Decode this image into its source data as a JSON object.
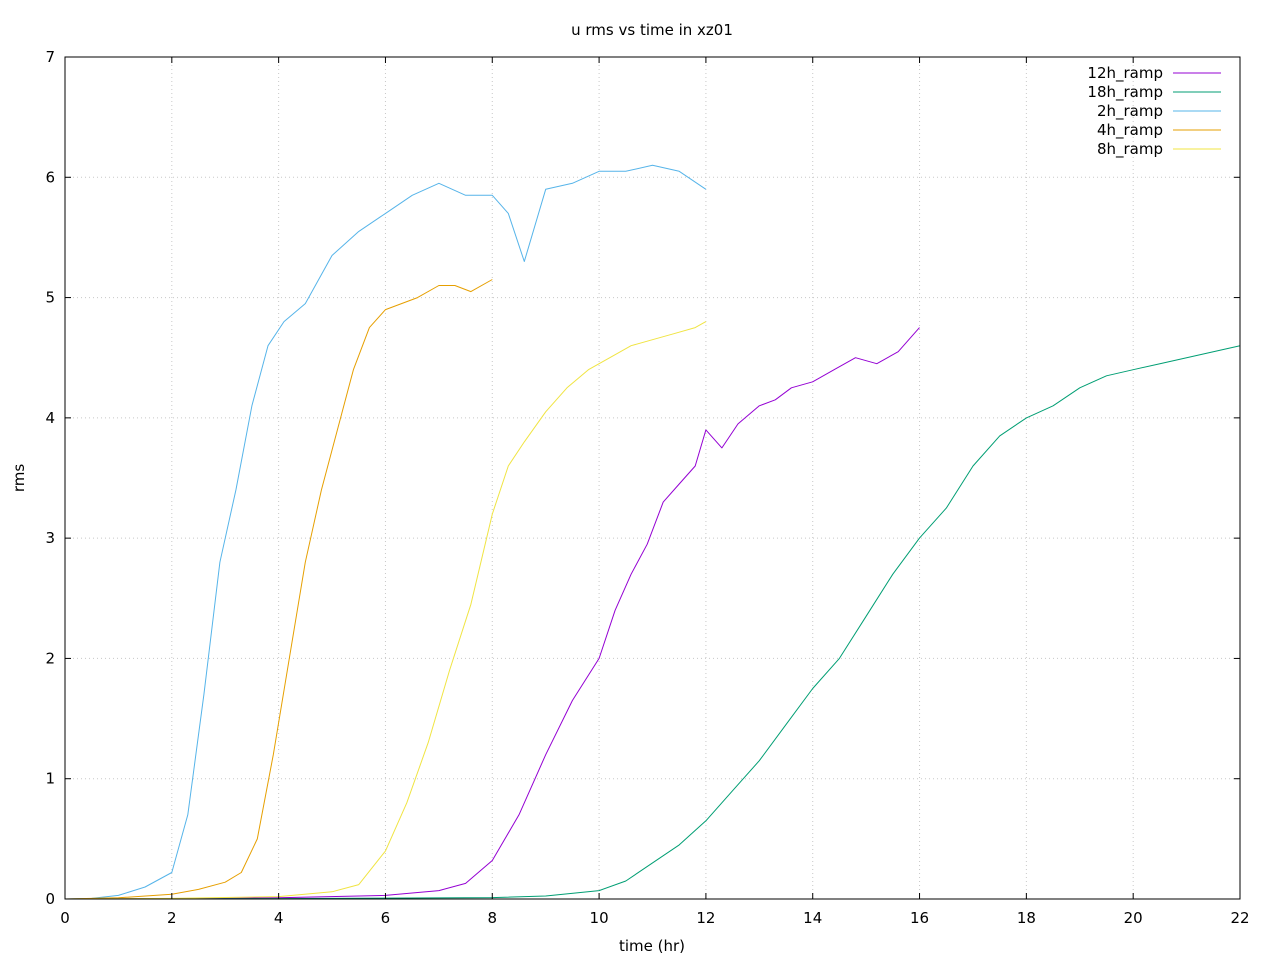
{
  "chart_data": {
    "type": "line",
    "title": "u rms vs time in xz01",
    "xlabel": "time (hr)",
    "ylabel": "rms",
    "xlim": [
      0,
      22
    ],
    "ylim": [
      0,
      7
    ],
    "x_ticks": [
      "0",
      "2",
      "4",
      "6",
      "8",
      "10",
      "12",
      "14",
      "16",
      "18",
      "20",
      "22"
    ],
    "y_ticks": [
      "0",
      "1",
      "2",
      "3",
      "4",
      "5",
      "6",
      "7"
    ],
    "grid": true,
    "legend_position": "top-right",
    "series": [
      {
        "name": "12h_ramp",
        "color": "#9400d3",
        "x": [
          0,
          2,
          4,
          6,
          7,
          7.5,
          8,
          8.5,
          9,
          9.5,
          10,
          10.3,
          10.6,
          10.9,
          11.2,
          11.5,
          11.8,
          12,
          12.3,
          12.6,
          13,
          13.3,
          13.6,
          14,
          14.4,
          14.8,
          15.2,
          15.6,
          16
        ],
        "y": [
          0,
          0.003,
          0.01,
          0.03,
          0.07,
          0.13,
          0.32,
          0.7,
          1.2,
          1.65,
          2.0,
          2.4,
          2.7,
          2.95,
          3.3,
          3.45,
          3.6,
          3.9,
          3.75,
          3.95,
          4.1,
          4.15,
          4.25,
          4.3,
          4.4,
          4.5,
          4.45,
          4.55,
          4.75
        ]
      },
      {
        "name": "18h_ramp",
        "color": "#009e73",
        "x": [
          0,
          4,
          8,
          9,
          10,
          10.5,
          11,
          11.5,
          12,
          12.5,
          13,
          13.5,
          14,
          14.5,
          15,
          15.5,
          16,
          16.5,
          17,
          17.5,
          18,
          18.5,
          19,
          19.5,
          20,
          20.5,
          21,
          21.5,
          22
        ],
        "y": [
          0,
          0.003,
          0.012,
          0.025,
          0.07,
          0.15,
          0.3,
          0.45,
          0.65,
          0.9,
          1.15,
          1.45,
          1.75,
          2.0,
          2.35,
          2.7,
          3.0,
          3.25,
          3.6,
          3.85,
          4.0,
          4.1,
          4.25,
          4.35,
          4.4,
          4.45,
          4.5,
          4.55,
          4.6
        ]
      },
      {
        "name": "2h_ramp",
        "color": "#56b4e9",
        "x": [
          0,
          0.5,
          1,
          1.5,
          2,
          2.3,
          2.6,
          2.9,
          3.2,
          3.5,
          3.8,
          4.1,
          4.5,
          5,
          5.5,
          6,
          6.5,
          7,
          7.5,
          8,
          8.3,
          8.6,
          9,
          9.5,
          10,
          10.5,
          11,
          11.5,
          12
        ],
        "y": [
          0,
          0.005,
          0.03,
          0.1,
          0.22,
          0.7,
          1.7,
          2.8,
          3.4,
          4.1,
          4.6,
          4.8,
          4.95,
          5.35,
          5.55,
          5.7,
          5.85,
          5.95,
          5.85,
          5.85,
          5.7,
          5.3,
          5.9,
          5.95,
          6.05,
          6.05,
          6.1,
          6.05,
          5.9
        ]
      },
      {
        "name": "4h_ramp",
        "color": "#e69f00",
        "x": [
          0,
          1,
          2,
          2.5,
          3,
          3.3,
          3.6,
          3.9,
          4.2,
          4.5,
          4.8,
          5.1,
          5.4,
          5.7,
          6,
          6.3,
          6.6,
          7,
          7.3,
          7.6,
          8
        ],
        "y": [
          0,
          0.01,
          0.04,
          0.08,
          0.14,
          0.22,
          0.5,
          1.2,
          2.0,
          2.8,
          3.4,
          3.9,
          4.4,
          4.75,
          4.9,
          4.95,
          5.0,
          5.1,
          5.1,
          5.05,
          5.15
        ]
      },
      {
        "name": "8h_ramp",
        "color": "#f0e442",
        "x": [
          0,
          2,
          4,
          5,
          5.5,
          6,
          6.4,
          6.8,
          7.2,
          7.6,
          8,
          8.3,
          8.6,
          9,
          9.4,
          9.8,
          10.2,
          10.6,
          11,
          11.4,
          11.8,
          12
        ],
        "y": [
          0,
          0.005,
          0.02,
          0.06,
          0.12,
          0.4,
          0.8,
          1.3,
          1.9,
          2.45,
          3.2,
          3.6,
          3.8,
          4.05,
          4.25,
          4.4,
          4.5,
          4.6,
          4.65,
          4.7,
          4.75,
          4.8
        ]
      }
    ]
  }
}
